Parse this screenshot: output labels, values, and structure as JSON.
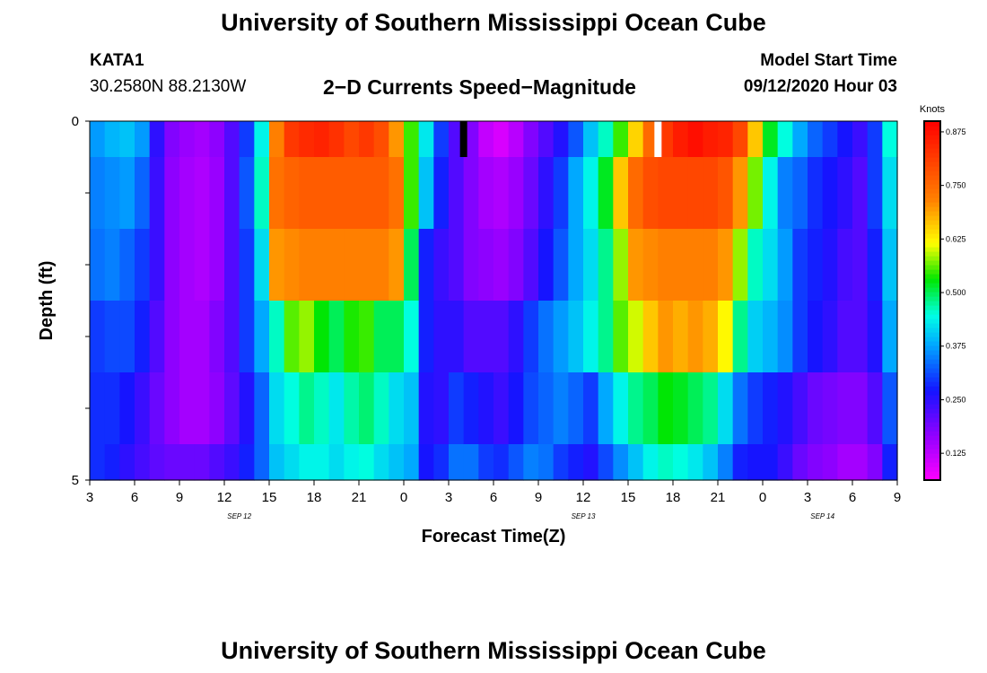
{
  "header": {
    "title": "University of Southern Mississippi Ocean Cube",
    "station": "KATA1",
    "coordinates": "30.2580N 88.2130W",
    "subtitle": "2−D Currents Speed−Magnitude",
    "model_start_label": "Model Start Time",
    "model_start_value": "09/12/2020 Hour 03"
  },
  "footer": {
    "title": "University of Southern Mississippi Ocean Cube"
  },
  "chart_data": {
    "type": "heatmap",
    "xlabel": "Forecast Time(Z)",
    "ylabel": "Depth (ft)",
    "x_ticks": [
      "3",
      "6",
      "9",
      "12",
      "15",
      "18",
      "21",
      "0",
      "3",
      "6",
      "9",
      "12",
      "15",
      "18",
      "21",
      "0",
      "3",
      "6",
      "9"
    ],
    "date_labels": [
      {
        "label": "SEP 12",
        "hour_index": 10
      },
      {
        "label": "SEP 13",
        "hour_index": 33
      },
      {
        "label": "SEP 14",
        "hour_index": 49
      }
    ],
    "y_tick_labels": [
      "0",
      "5"
    ],
    "ylim": [
      0,
      5
    ],
    "hours": 54,
    "depth_layer_bounds": [
      0,
      0.5,
      1.5,
      2.5,
      3.5,
      4.5,
      5
    ],
    "colorbar": {
      "label": "Knots",
      "min": 0.0625,
      "max": 0.9,
      "tick_labels": [
        "0.875",
        "0.750",
        "0.625",
        "0.500",
        "0.375",
        "0.250",
        "0.125"
      ],
      "tick_values": [
        0.875,
        0.75,
        0.625,
        0.5,
        0.375,
        0.25,
        0.125
      ]
    },
    "colors": {
      "low": "#ff00ff",
      "mid": "#ffff00",
      "high": "#ff0000"
    },
    "markers": [
      {
        "name": "current-time-marker",
        "hour": 25,
        "color": "#000000"
      },
      {
        "name": "model-start-marker",
        "hour": 38,
        "color": "#ffffff"
      }
    ],
    "speed_knots": [
      [
        0.37,
        0.39,
        0.4,
        0.37,
        0.25,
        0.18,
        0.16,
        0.15,
        0.17,
        0.22,
        0.3,
        0.44,
        0.72,
        0.82,
        0.84,
        0.85,
        0.83,
        0.8,
        0.82,
        0.79,
        0.7,
        0.55,
        0.43,
        0.3,
        0.22,
        0.18,
        0.12,
        0.1,
        0.13,
        0.18,
        0.22,
        0.26,
        0.32,
        0.4,
        0.46,
        0.55,
        0.65,
        0.75,
        0.82,
        0.86,
        0.88,
        0.86,
        0.85,
        0.8,
        0.66,
        0.52,
        0.45,
        0.38,
        0.33,
        0.3,
        0.27,
        0.24,
        0.3,
        0.45
      ],
      [
        0.35,
        0.36,
        0.37,
        0.33,
        0.24,
        0.17,
        0.15,
        0.14,
        0.16,
        0.22,
        0.32,
        0.46,
        0.74,
        0.76,
        0.77,
        0.77,
        0.77,
        0.77,
        0.77,
        0.77,
        0.74,
        0.55,
        0.4,
        0.28,
        0.22,
        0.18,
        0.15,
        0.14,
        0.16,
        0.2,
        0.25,
        0.3,
        0.38,
        0.44,
        0.52,
        0.66,
        0.75,
        0.79,
        0.8,
        0.8,
        0.8,
        0.8,
        0.78,
        0.7,
        0.57,
        0.44,
        0.35,
        0.33,
        0.29,
        0.27,
        0.25,
        0.22,
        0.3,
        0.42
      ],
      [
        0.34,
        0.35,
        0.33,
        0.3,
        0.24,
        0.17,
        0.15,
        0.14,
        0.16,
        0.22,
        0.3,
        0.42,
        0.7,
        0.71,
        0.72,
        0.72,
        0.72,
        0.72,
        0.72,
        0.72,
        0.7,
        0.5,
        0.28,
        0.24,
        0.22,
        0.18,
        0.17,
        0.16,
        0.18,
        0.22,
        0.27,
        0.32,
        0.38,
        0.42,
        0.48,
        0.58,
        0.7,
        0.71,
        0.72,
        0.72,
        0.72,
        0.72,
        0.7,
        0.58,
        0.46,
        0.42,
        0.37,
        0.3,
        0.28,
        0.26,
        0.23,
        0.22,
        0.28,
        0.4
      ],
      [
        0.3,
        0.31,
        0.31,
        0.28,
        0.22,
        0.17,
        0.15,
        0.15,
        0.18,
        0.22,
        0.3,
        0.38,
        0.46,
        0.56,
        0.58,
        0.53,
        0.5,
        0.54,
        0.55,
        0.5,
        0.5,
        0.45,
        0.28,
        0.25,
        0.25,
        0.22,
        0.22,
        0.22,
        0.25,
        0.3,
        0.34,
        0.37,
        0.4,
        0.44,
        0.48,
        0.56,
        0.6,
        0.66,
        0.7,
        0.68,
        0.7,
        0.68,
        0.62,
        0.48,
        0.41,
        0.39,
        0.36,
        0.3,
        0.27,
        0.25,
        0.22,
        0.22,
        0.26,
        0.38
      ],
      [
        0.29,
        0.29,
        0.27,
        0.24,
        0.2,
        0.17,
        0.15,
        0.15,
        0.17,
        0.21,
        0.26,
        0.33,
        0.42,
        0.45,
        0.48,
        0.46,
        0.43,
        0.47,
        0.49,
        0.46,
        0.42,
        0.4,
        0.26,
        0.25,
        0.3,
        0.28,
        0.26,
        0.24,
        0.27,
        0.31,
        0.33,
        0.35,
        0.33,
        0.3,
        0.38,
        0.44,
        0.48,
        0.5,
        0.53,
        0.52,
        0.5,
        0.48,
        0.42,
        0.34,
        0.3,
        0.28,
        0.26,
        0.23,
        0.2,
        0.19,
        0.18,
        0.18,
        0.22,
        0.32
      ],
      [
        0.29,
        0.28,
        0.25,
        0.23,
        0.21,
        0.2,
        0.2,
        0.2,
        0.22,
        0.24,
        0.28,
        0.33,
        0.4,
        0.42,
        0.44,
        0.44,
        0.42,
        0.44,
        0.45,
        0.42,
        0.4,
        0.38,
        0.27,
        0.29,
        0.34,
        0.34,
        0.3,
        0.29,
        0.32,
        0.35,
        0.34,
        0.3,
        0.28,
        0.26,
        0.31,
        0.36,
        0.4,
        0.44,
        0.46,
        0.45,
        0.43,
        0.4,
        0.35,
        0.28,
        0.27,
        0.27,
        0.24,
        0.2,
        0.18,
        0.17,
        0.15,
        0.15,
        0.18,
        0.28
      ]
    ]
  }
}
